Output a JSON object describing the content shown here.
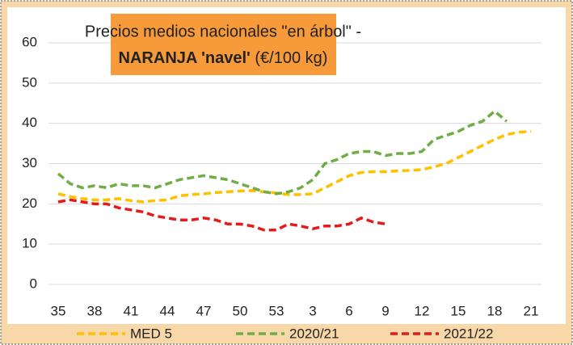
{
  "chart_data": {
    "type": "line",
    "title": {
      "line1": "Precios medios nacionales \"en árbol\" -",
      "bold": "NARANJA 'navel'",
      "rest": "(€/100 kg)"
    },
    "categories": [
      "35",
      null,
      null,
      "38",
      null,
      null,
      "41",
      null,
      null,
      "44",
      null,
      null,
      "47",
      null,
      null,
      "50",
      null,
      null,
      "53",
      null,
      null,
      "3",
      null,
      null,
      "6",
      null,
      null,
      "9",
      null,
      null,
      "12",
      null,
      null,
      "15",
      null,
      null,
      "18",
      null,
      null,
      "21"
    ],
    "series": [
      {
        "name": "MED 5",
        "color": "#ffc000",
        "values": [
          22.5,
          21.8,
          21.3,
          21,
          21,
          21.3,
          20.8,
          20.5,
          20.8,
          21,
          22,
          22.3,
          22.5,
          22.8,
          23,
          23.2,
          23.3,
          23,
          22.7,
          22.3,
          22.3,
          22.5,
          24,
          25.5,
          27,
          27.8,
          28,
          28,
          28.2,
          28.3,
          28.5,
          29.2,
          30,
          31.5,
          33,
          34.5,
          36,
          37.2,
          37.8,
          38
        ]
      },
      {
        "name": "2020/21",
        "color": "#70ad47",
        "values": [
          27.5,
          25,
          24,
          24.5,
          24,
          25,
          24.5,
          24.5,
          24,
          25,
          26,
          26.5,
          27,
          26.5,
          26,
          25,
          24,
          23,
          22.5,
          23,
          24,
          26,
          30,
          31,
          32.5,
          33,
          33,
          32,
          32.5,
          32.5,
          33,
          36,
          37,
          38,
          39.5,
          40.5,
          43,
          40.5,
          null,
          null
        ]
      },
      {
        "name": "2021/22",
        "color": "#e8191a",
        "values": [
          20.5,
          21,
          20.5,
          20,
          20,
          19,
          18.5,
          18,
          17,
          16.5,
          16,
          16,
          16.5,
          16,
          15,
          15,
          14.5,
          13.5,
          13.5,
          15,
          14.5,
          13.8,
          14.5,
          14.5,
          15,
          16.5,
          15.5,
          15,
          null,
          null,
          null,
          null,
          null,
          null,
          null,
          null,
          null,
          null,
          null,
          null
        ]
      }
    ],
    "ylim": [
      0,
      60
    ],
    "yticks": [
      0,
      10,
      20,
      30,
      40,
      50,
      60
    ],
    "grid": true
  }
}
